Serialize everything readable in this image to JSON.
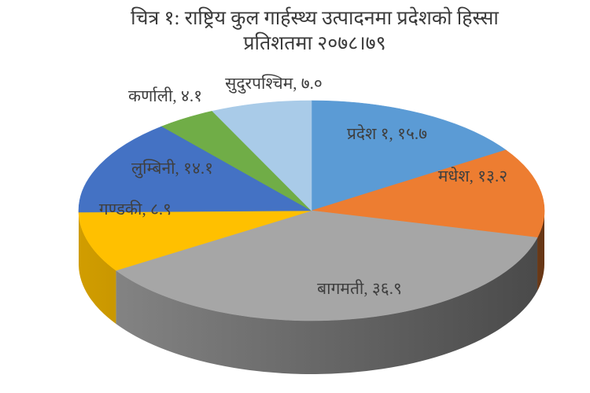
{
  "chart_data": {
    "type": "pie",
    "style": "3d",
    "title_line1": "चित्र १: राष्ट्रिय कुल गार्हस्थ्य उत्पादनमा प्रदेशको हिस्सा",
    "title_line2": "प्रतिशतमा २०७८।७९",
    "start_angle_deg": 0,
    "direction": "clockwise",
    "legend": "none",
    "label_color": "#3f3f3f",
    "categories": [
      "प्रदेश १",
      "मधेश",
      "बागमती",
      "गण्डकी",
      "लुम्बिनी",
      "कर्णाली",
      "सुदुरपश्चिम"
    ],
    "values": [
      15.7,
      13.2,
      36.9,
      8.9,
      14.1,
      4.1,
      7.0
    ],
    "slices": [
      {
        "id": "province-1",
        "name": "प्रदेश १",
        "value": 15.7,
        "value_devanagari": "१५.७",
        "label": "प्रदेश १, १५.७",
        "color": "#5B9BD5"
      },
      {
        "id": "madhesh",
        "name": "मधेश",
        "value": 13.2,
        "value_devanagari": "१३.२",
        "label": "मधेश, १३.२",
        "color": "#ED7D31"
      },
      {
        "id": "bagmati",
        "name": "बागमती",
        "value": 36.9,
        "value_devanagari": "३६.९",
        "label": "बागमती, ३६.९",
        "color": "#A6A6A6"
      },
      {
        "id": "gandaki",
        "name": "गण्डकी",
        "value": 8.9,
        "value_devanagari": "८.९",
        "label": "गण्डकी, ८.९",
        "color": "#FFC000"
      },
      {
        "id": "lumbini",
        "name": "लुम्बिनी",
        "value": 14.1,
        "value_devanagari": "१४.१",
        "label": "लुम्बिनी, १४.१",
        "color": "#4472C4"
      },
      {
        "id": "karnali",
        "name": "कर्णाली",
        "value": 4.1,
        "value_devanagari": "४.१",
        "label": "कर्णाली, ४.१",
        "color": "#70AD47"
      },
      {
        "id": "sudurpashchim",
        "name": "सुदुरपश्चिम",
        "value": 7.0,
        "value_devanagari": "७.०",
        "label": "सुदुरपश्चिम, ७.०",
        "color": "#A9CBE8"
      }
    ]
  }
}
